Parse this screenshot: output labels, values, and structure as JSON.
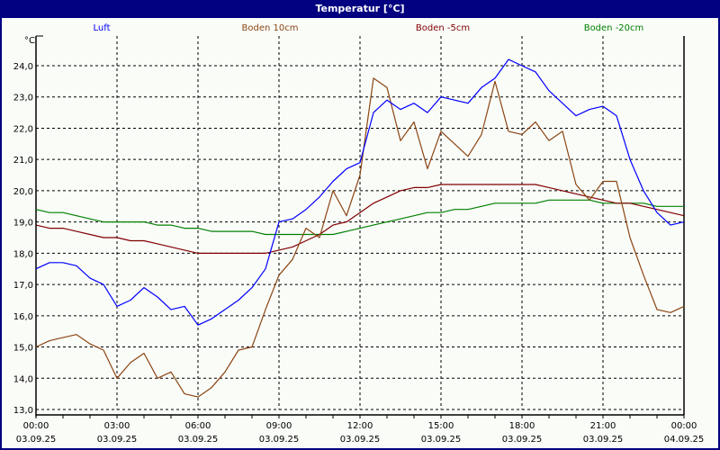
{
  "window": {
    "title": "Temperatur [°C]"
  },
  "legend": [
    {
      "label": "Luft",
      "color": "#0000ff"
    },
    {
      "label": "Boden 10cm",
      "color": "#8b4513"
    },
    {
      "label": "Boden -5cm",
      "color": "#800000"
    },
    {
      "label": "Boden -20cm",
      "color": "#008000"
    }
  ],
  "axis": {
    "y_unit": "°C",
    "y_ticks": [
      "24,0",
      "23,0",
      "22,0",
      "21,0",
      "20,0",
      "19,0",
      "18,0",
      "17,0",
      "16,0",
      "15,0",
      "14,0",
      "13,0"
    ],
    "x_ticks": [
      {
        "time": "00:00",
        "date": "03.09.25"
      },
      {
        "time": "03:00",
        "date": "03.09.25"
      },
      {
        "time": "06:00",
        "date": "03.09.25"
      },
      {
        "time": "09:00",
        "date": "03.09.25"
      },
      {
        "time": "12:00",
        "date": "03.09.25"
      },
      {
        "time": "15:00",
        "date": "03.09.25"
      },
      {
        "time": "18:00",
        "date": "03.09.25"
      },
      {
        "time": "21:00",
        "date": "03.09.25"
      },
      {
        "time": "00:00",
        "date": "04.09.25"
      }
    ]
  },
  "chart_data": {
    "type": "line",
    "title": "Temperatur [°C]",
    "xlabel": "",
    "ylabel": "°C",
    "ylim": [
      13.0,
      24.0
    ],
    "xlim_hours": [
      0,
      24
    ],
    "grid": true,
    "legend_position": "top",
    "x": [
      0,
      0.5,
      1,
      1.5,
      2,
      2.5,
      3,
      3.5,
      4,
      4.5,
      5,
      5.5,
      6,
      6.5,
      7,
      7.5,
      8,
      8.5,
      9,
      9.5,
      10,
      10.5,
      11,
      11.5,
      12,
      12.5,
      13,
      13.5,
      14,
      14.5,
      15,
      15.5,
      16,
      16.5,
      17,
      17.5,
      18,
      18.5,
      19,
      19.5,
      20,
      20.5,
      21,
      21.5,
      22,
      22.5,
      23,
      23.5,
      24
    ],
    "series": [
      {
        "name": "Luft",
        "color": "#0000ff",
        "values": [
          17.5,
          17.7,
          17.7,
          17.6,
          17.2,
          17.0,
          16.3,
          16.5,
          16.9,
          16.6,
          16.2,
          16.3,
          15.7,
          15.9,
          16.2,
          16.5,
          16.9,
          17.5,
          19.0,
          19.1,
          19.4,
          19.8,
          20.3,
          20.7,
          20.9,
          22.5,
          22.9,
          22.6,
          22.8,
          22.5,
          23.0,
          22.9,
          22.8,
          23.3,
          23.6,
          24.2,
          24.0,
          23.8,
          23.2,
          22.8,
          22.4,
          22.6,
          22.7,
          22.4,
          21.0,
          20.0,
          19.3,
          18.9,
          19.0
        ]
      },
      {
        "name": "Boden 10cm",
        "color": "#8b4513",
        "values": [
          15.0,
          15.2,
          15.3,
          15.4,
          15.1,
          14.9,
          14.0,
          14.5,
          14.8,
          14.0,
          14.2,
          13.5,
          13.4,
          13.7,
          14.2,
          14.9,
          15.0,
          16.2,
          17.3,
          17.8,
          18.8,
          18.5,
          20.0,
          19.2,
          20.5,
          23.6,
          23.3,
          21.6,
          22.2,
          20.7,
          21.9,
          21.5,
          21.1,
          21.8,
          23.5,
          21.9,
          21.8,
          22.2,
          21.6,
          21.9,
          20.2,
          19.7,
          20.3,
          20.3,
          18.5,
          17.3,
          16.2,
          16.1,
          16.3
        ]
      },
      {
        "name": "Boden -5cm",
        "color": "#800000",
        "values": [
          18.9,
          18.8,
          18.8,
          18.7,
          18.6,
          18.5,
          18.5,
          18.4,
          18.4,
          18.3,
          18.2,
          18.1,
          18.0,
          18.0,
          18.0,
          18.0,
          18.0,
          18.0,
          18.1,
          18.2,
          18.4,
          18.6,
          18.9,
          19.0,
          19.3,
          19.6,
          19.8,
          20.0,
          20.1,
          20.1,
          20.2,
          20.2,
          20.2,
          20.2,
          20.2,
          20.2,
          20.2,
          20.2,
          20.1,
          20.0,
          19.9,
          19.8,
          19.7,
          19.6,
          19.6,
          19.5,
          19.4,
          19.3,
          19.2
        ]
      },
      {
        "name": "Boden -20cm",
        "color": "#008000",
        "values": [
          19.4,
          19.3,
          19.3,
          19.2,
          19.1,
          19.0,
          19.0,
          19.0,
          19.0,
          18.9,
          18.9,
          18.8,
          18.8,
          18.7,
          18.7,
          18.7,
          18.7,
          18.6,
          18.6,
          18.6,
          18.6,
          18.6,
          18.6,
          18.7,
          18.8,
          18.9,
          19.0,
          19.1,
          19.2,
          19.3,
          19.3,
          19.4,
          19.4,
          19.5,
          19.6,
          19.6,
          19.6,
          19.6,
          19.7,
          19.7,
          19.7,
          19.7,
          19.6,
          19.6,
          19.6,
          19.6,
          19.5,
          19.5,
          19.5
        ]
      }
    ]
  }
}
